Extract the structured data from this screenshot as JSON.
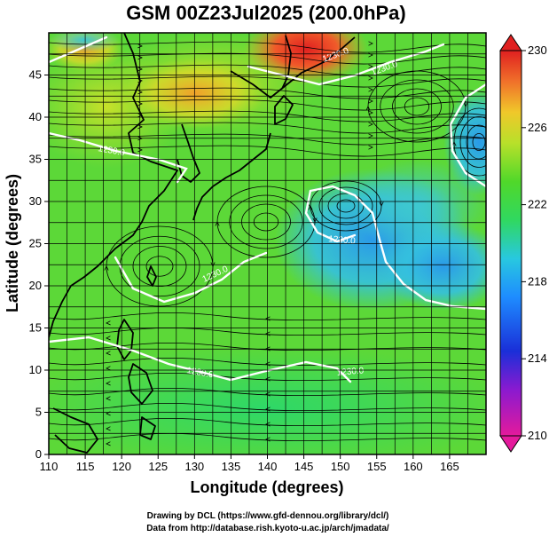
{
  "title": "GSM 00Z23Jul2025 (200.0hPa)",
  "xlabel": "Longitude (degrees)",
  "ylabel": "Latitude  (degrees)",
  "credits": [
    "Drawing by DCL (https://www.gfd-dennou.org/library/dcl/)",
    "Data from http://database.rish.kyoto-u.ac.jp/arch/jmadata/"
  ],
  "map": {
    "lon_range": [
      110,
      170
    ],
    "lat_range": [
      0,
      50
    ],
    "lon_ticks": [
      "110",
      "115",
      "120",
      "125",
      "130",
      "135",
      "140",
      "145",
      "150",
      "155",
      "160",
      "165"
    ],
    "lat_ticks": [
      "0",
      "5",
      "10",
      "15",
      "20",
      "25",
      "30",
      "35",
      "40",
      "45"
    ],
    "grid": true,
    "contour_labels": [
      "1230.0",
      "1230.0",
      "1230.0",
      "1230.0",
      "1230.0",
      "1230.0",
      "1230.0"
    ]
  },
  "colorbar": {
    "ticks": [
      "210",
      "214",
      "218",
      "222",
      "226",
      "230"
    ],
    "range": [
      210,
      230
    ],
    "colors": [
      "#e41a9c",
      "#6a1bd0",
      "#1a3fe0",
      "#1e90ff",
      "#27c0e8",
      "#2fd86a",
      "#3fd82a",
      "#9ee02a",
      "#e8d82a",
      "#f09a2a",
      "#f0502a",
      "#e02020"
    ]
  }
}
